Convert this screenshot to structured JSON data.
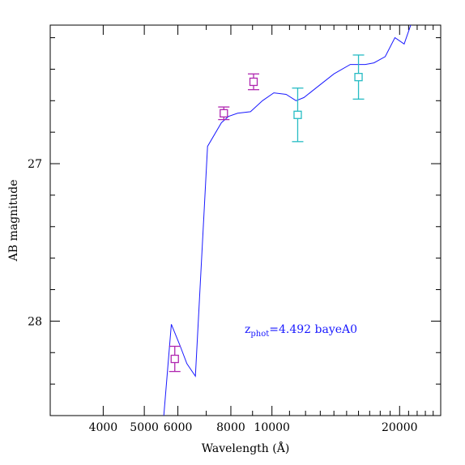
{
  "chart_data": {
    "type": "line",
    "xlabel": "Wavelength (Å)",
    "ylabel": "AB magnitude",
    "x_scale": "log",
    "xlim": [
      3000,
      25000
    ],
    "ylim": [
      28.6,
      26.12
    ],
    "y_inverted": true,
    "x_ticks": [
      {
        "value": 4000,
        "label": "4000"
      },
      {
        "value": 5000,
        "label": "5000"
      },
      {
        "value": 6000,
        "label": "6000"
      },
      {
        "value": 8000,
        "label": "8000"
      },
      {
        "value": 10000,
        "label": "10000"
      },
      {
        "value": 20000,
        "label": "20000"
      }
    ],
    "y_ticks": [
      {
        "value": 27,
        "label": "27"
      },
      {
        "value": 28,
        "label": "28"
      }
    ],
    "annotation": {
      "prefix": "z",
      "subscript": "phot",
      "text": "=4.492 bayeA0"
    },
    "colors": {
      "sed": "#1a1aff",
      "optical": "#b027b0",
      "nir": "#27bcc4",
      "annotation": "#1a1aff"
    },
    "sed": [
      {
        "x": 5500,
        "y": 28.75
      },
      {
        "x": 5790,
        "y": 28.02
      },
      {
        "x": 6060,
        "y": 28.15
      },
      {
        "x": 6300,
        "y": 28.27
      },
      {
        "x": 6600,
        "y": 28.35
      },
      {
        "x": 7050,
        "y": 26.89
      },
      {
        "x": 7600,
        "y": 26.74
      },
      {
        "x": 7900,
        "y": 26.7
      },
      {
        "x": 8300,
        "y": 26.68
      },
      {
        "x": 8900,
        "y": 26.67
      },
      {
        "x": 9500,
        "y": 26.6
      },
      {
        "x": 10100,
        "y": 26.55
      },
      {
        "x": 10800,
        "y": 26.56
      },
      {
        "x": 11400,
        "y": 26.6
      },
      {
        "x": 11900,
        "y": 26.58
      },
      {
        "x": 12700,
        "y": 26.52
      },
      {
        "x": 14000,
        "y": 26.43
      },
      {
        "x": 15300,
        "y": 26.37
      },
      {
        "x": 16600,
        "y": 26.37
      },
      {
        "x": 17400,
        "y": 26.36
      },
      {
        "x": 18500,
        "y": 26.32
      },
      {
        "x": 19500,
        "y": 26.2
      },
      {
        "x": 20500,
        "y": 26.24
      },
      {
        "x": 21500,
        "y": 26.08
      }
    ],
    "points": [
      {
        "x": 5900,
        "y": 28.24,
        "err": 0.08,
        "band": "optical"
      },
      {
        "x": 7700,
        "y": 26.68,
        "err": 0.04,
        "band": "optical"
      },
      {
        "x": 9050,
        "y": 26.48,
        "err": 0.05,
        "band": "optical"
      },
      {
        "x": 11500,
        "y": 26.69,
        "err": 0.17,
        "band": "nir"
      },
      {
        "x": 16000,
        "y": 26.45,
        "err": 0.14,
        "band": "nir"
      }
    ]
  }
}
